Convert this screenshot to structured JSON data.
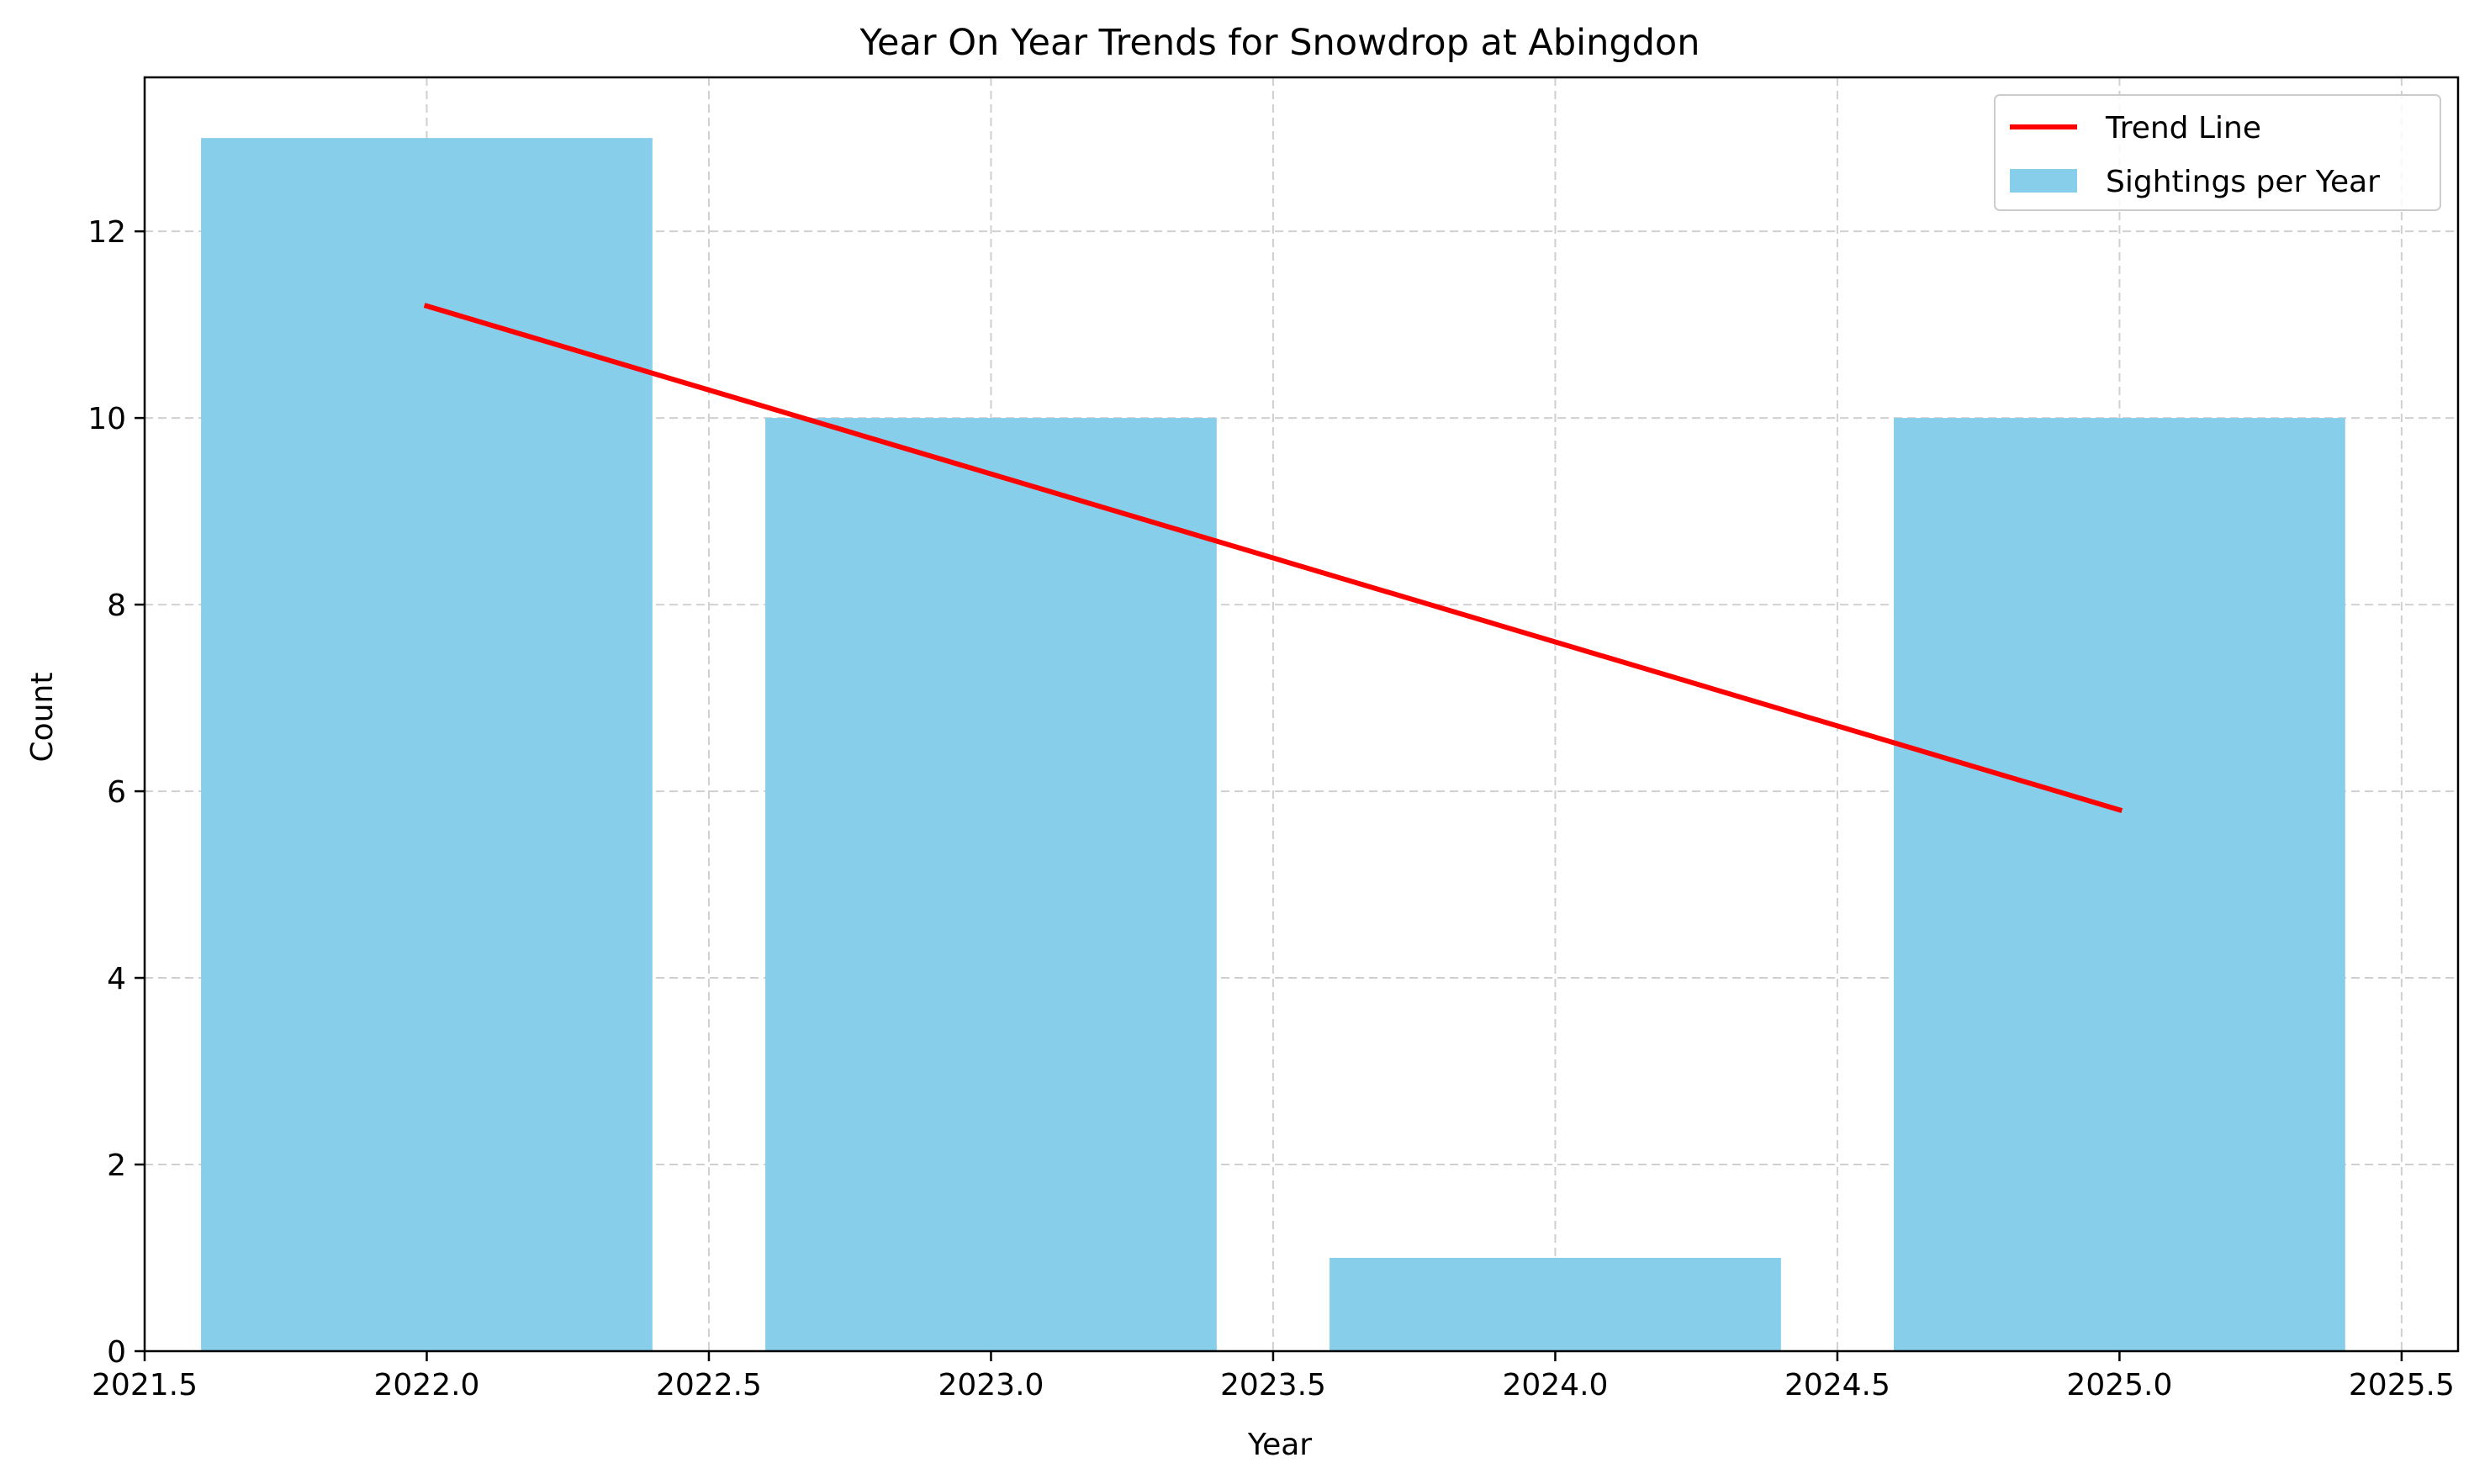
{
  "chart_data": {
    "type": "bar",
    "title": "Year On Year Trends for Snowdrop at Abingdon",
    "xlabel": "Year",
    "ylabel": "Count",
    "xlim": [
      2021.5,
      2025.6
    ],
    "ylim": [
      0,
      13.65
    ],
    "x_ticks": [
      2021.5,
      2022.0,
      2022.5,
      2023.0,
      2023.5,
      2024.0,
      2024.5,
      2025.0,
      2025.5
    ],
    "x_tick_labels": [
      "2021.5",
      "2022.0",
      "2022.5",
      "2023.0",
      "2023.5",
      "2024.0",
      "2024.5",
      "2025.0",
      "2025.5"
    ],
    "y_ticks": [
      0,
      2,
      4,
      6,
      8,
      10,
      12
    ],
    "y_tick_labels": [
      "0",
      "2",
      "4",
      "6",
      "8",
      "10",
      "12"
    ],
    "grid": true,
    "legend_position": "top-right",
    "bar_width": 0.8,
    "series": [
      {
        "name": "Sightings per Year",
        "type": "bar",
        "color": "#87ceeb",
        "x": [
          2022,
          2023,
          2024,
          2025
        ],
        "values": [
          13,
          10,
          1,
          10
        ]
      },
      {
        "name": "Trend Line",
        "type": "line",
        "color": "#ff0000",
        "x": [
          2022,
          2025
        ],
        "values": [
          11.2,
          5.8
        ]
      }
    ],
    "legend": [
      {
        "label": "Trend Line",
        "kind": "line",
        "color": "#ff0000"
      },
      {
        "label": "Sightings per Year",
        "kind": "patch",
        "color": "#87ceeb"
      }
    ]
  }
}
